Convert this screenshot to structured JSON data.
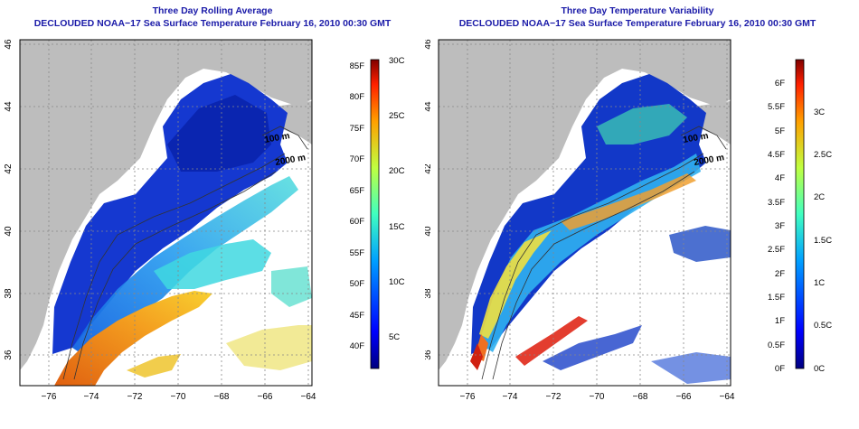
{
  "panels": [
    {
      "title": "Three Day Rolling Average",
      "subtitle": "DECLOUDED NOAA−17 Sea Surface Temperature February 16, 2010 00:30 GMT",
      "x_ticks": [
        "−76",
        "−74",
        "−72",
        "−70",
        "−68",
        "−66",
        "−64"
      ],
      "y_ticks": [
        "36",
        "38",
        "40",
        "42",
        "44",
        "46"
      ],
      "contour_labels": [
        "100 m",
        "2000 m"
      ],
      "colorbar": {
        "f_labels": [
          "85F",
          "80F",
          "75F",
          "70F",
          "65F",
          "60F",
          "55F",
          "50F",
          "45F",
          "40F"
        ],
        "c_labels": [
          "30C",
          "25C",
          "20C",
          "15C",
          "10C",
          "5C"
        ]
      }
    },
    {
      "title": "Three Day Temperature Variability",
      "subtitle": "DECLOUDED NOAA−17 Sea Surface Temperature February 16, 2010 00:30 GMT",
      "x_ticks": [
        "−76",
        "−74",
        "−72",
        "−70",
        "−68",
        "−66",
        "−64"
      ],
      "y_ticks": [
        "36",
        "38",
        "40",
        "42",
        "44",
        "46"
      ],
      "contour_labels": [
        "100 m",
        "2000 m"
      ],
      "colorbar": {
        "f_labels": [
          "6F",
          "5.5F",
          "5F",
          "4.5F",
          "4F",
          "3.5F",
          "3F",
          "2.5F",
          "2F",
          "1.5F",
          "1F",
          "0.5F",
          "0F"
        ],
        "c_labels": [
          "3C",
          "2.5C",
          "2C",
          "1.5C",
          "1C",
          "0.5C",
          "0C"
        ]
      }
    }
  ],
  "colors": {
    "title": "#1a1aa8",
    "land": "#bdbdbd",
    "ocean_missing": "#ffffff",
    "cold": "#1030c8",
    "warm": "#f08020"
  }
}
